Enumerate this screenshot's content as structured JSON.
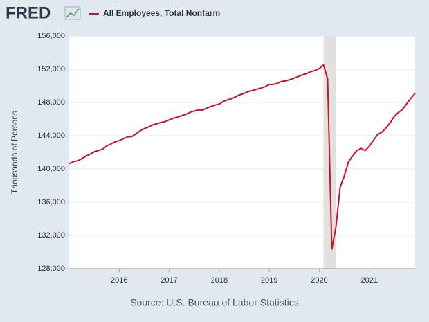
{
  "header": {
    "logo": "FRED"
  },
  "chart_data": {
    "type": "line",
    "y_label": "Thousands of Persons",
    "source": "Source: U.S. Bureau of Labor Statistics",
    "x": [
      "2015-01",
      "2015-02",
      "2015-03",
      "2015-04",
      "2015-05",
      "2015-06",
      "2015-07",
      "2015-08",
      "2015-09",
      "2015-10",
      "2015-11",
      "2015-12",
      "2016-01",
      "2016-02",
      "2016-03",
      "2016-04",
      "2016-05",
      "2016-06",
      "2016-07",
      "2016-08",
      "2016-09",
      "2016-10",
      "2016-11",
      "2016-12",
      "2017-01",
      "2017-02",
      "2017-03",
      "2017-04",
      "2017-05",
      "2017-06",
      "2017-07",
      "2017-08",
      "2017-09",
      "2017-10",
      "2017-11",
      "2017-12",
      "2018-01",
      "2018-02",
      "2018-03",
      "2018-04",
      "2018-05",
      "2018-06",
      "2018-07",
      "2018-08",
      "2018-09",
      "2018-10",
      "2018-11",
      "2018-12",
      "2019-01",
      "2019-02",
      "2019-03",
      "2019-04",
      "2019-05",
      "2019-06",
      "2019-07",
      "2019-08",
      "2019-09",
      "2019-10",
      "2019-11",
      "2019-12",
      "2020-01",
      "2020-02",
      "2020-03",
      "2020-04",
      "2020-05",
      "2020-06",
      "2020-07",
      "2020-08",
      "2020-09",
      "2020-10",
      "2020-11",
      "2020-12",
      "2021-01",
      "2021-02",
      "2021-03",
      "2021-04",
      "2021-05",
      "2021-06",
      "2021-07",
      "2021-08",
      "2021-09",
      "2021-10",
      "2021-11",
      "2021-12"
    ],
    "series": [
      {
        "name": "All Employees, Total Nonfarm",
        "color": "#cc1024",
        "values": [
          140623,
          140888,
          140972,
          141223,
          141551,
          141771,
          142064,
          142217,
          142366,
          142773,
          142998,
          143271,
          143402,
          143624,
          143854,
          143892,
          144217,
          144590,
          144856,
          145033,
          145286,
          145436,
          145590,
          145692,
          145905,
          146110,
          146236,
          146426,
          146564,
          146815,
          146966,
          147116,
          147082,
          147318,
          147517,
          147695,
          147805,
          148129,
          148318,
          148461,
          148715,
          148938,
          149097,
          149324,
          149439,
          149598,
          149730,
          149898,
          150166,
          150175,
          150333,
          150543,
          150601,
          150764,
          150932,
          151142,
          151334,
          151491,
          151714,
          151859,
          152084,
          152523,
          150840,
          130303,
          133028,
          137800,
          139176,
          140866,
          141558,
          142210,
          142475,
          142212,
          142736,
          143446,
          144150,
          144419,
          144916,
          145558,
          146333,
          146811,
          147175,
          147865,
          148511,
          149094
        ]
      }
    ],
    "xlim": [
      "2015-01",
      "2021-12"
    ],
    "xticks": [
      "2016",
      "2017",
      "2018",
      "2019",
      "2020",
      "2021"
    ],
    "ylim": [
      128000,
      156000
    ],
    "yticks": [
      {
        "value": 128000,
        "label": "128,000"
      },
      {
        "value": 132000,
        "label": "132,000"
      },
      {
        "value": 136000,
        "label": "136,000"
      },
      {
        "value": 140000,
        "label": "140,000"
      },
      {
        "value": 144000,
        "label": "144,000"
      },
      {
        "value": 148000,
        "label": "148,000"
      },
      {
        "value": 152000,
        "label": "152,000"
      },
      {
        "value": 156000,
        "label": "156,000"
      }
    ],
    "recessions": [
      [
        "2020-02",
        "2020-04"
      ]
    ],
    "grid": true
  }
}
